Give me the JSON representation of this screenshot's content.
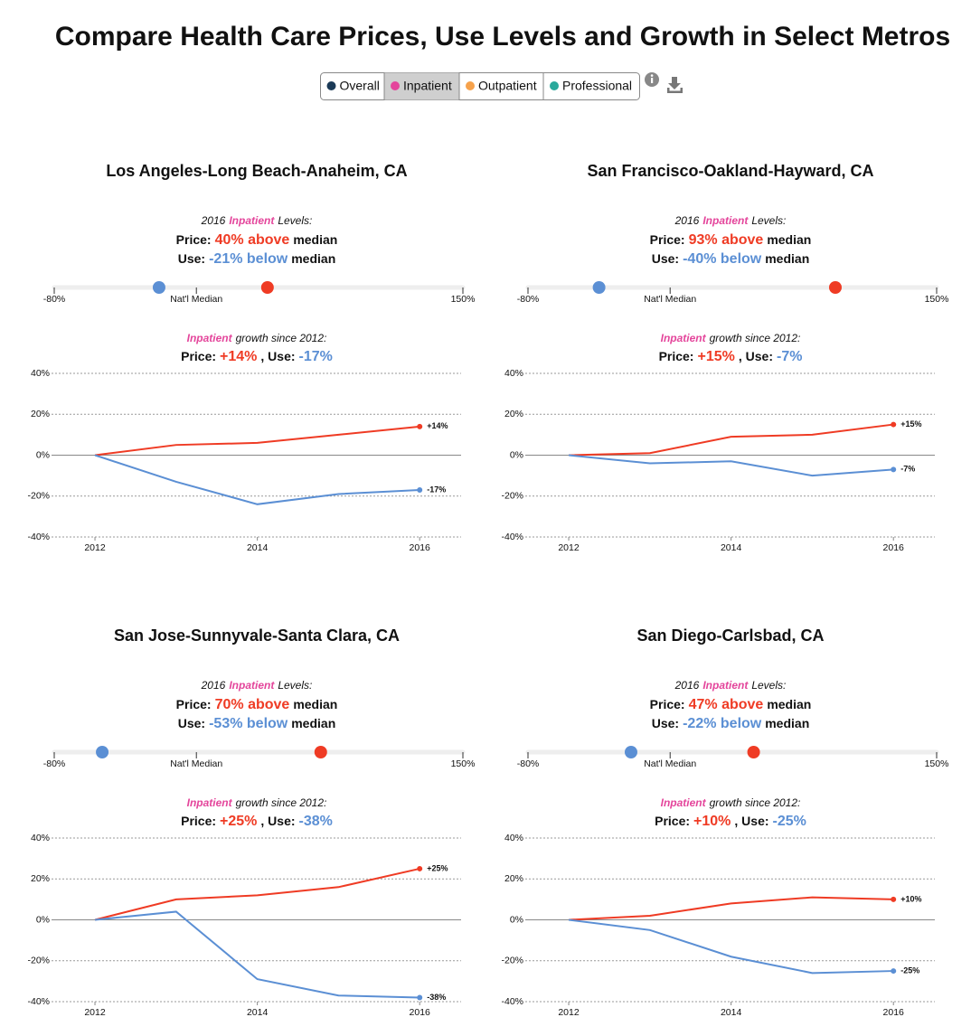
{
  "title": "Compare Health Care Prices, Use Levels and Growth in Select Metros",
  "tabs": [
    {
      "label": "Overall",
      "color": "#1b3a57"
    },
    {
      "label": "Inpatient",
      "color": "#e4459b"
    },
    {
      "label": "Outpatient",
      "color": "#f6a24c"
    },
    {
      "label": "Professional",
      "color": "#2aa99b"
    }
  ],
  "active_tab": 1,
  "chart_data": [
    {
      "type": "line",
      "title": "Los Angeles-Long Beach-Anaheim, CA",
      "levels": {
        "year": "2016",
        "category": "Inpatient",
        "caption": "Levels:",
        "price_label": "Price:",
        "price_value": 40,
        "price_text": "40% above",
        "use_label": "Use:",
        "use_value": -21,
        "use_text": "-21% below",
        "suffix": "median",
        "range": [
          -80,
          150
        ],
        "ticks": [
          {
            "value": -80,
            "label": "-80%"
          },
          {
            "value": 0,
            "label": "Nat'l Median"
          },
          {
            "value": 150,
            "label": "150%"
          }
        ]
      },
      "growth": {
        "category": "Inpatient",
        "caption": "growth since 2012:",
        "price_label": "Price:",
        "separator": ", Use:"
      },
      "x": [
        2012,
        2013,
        2014,
        2015,
        2016
      ],
      "xlim": [
        2011.22,
        2016.51
      ],
      "xticks": [
        2012,
        2014,
        2016
      ],
      "ylim": [
        -40,
        40
      ],
      "yticks": [
        {
          "value": -40,
          "label": "-40%"
        },
        {
          "value": -20,
          "label": "-20%"
        },
        {
          "value": 0,
          "label": "0%"
        },
        {
          "value": 20,
          "label": "20%"
        },
        {
          "value": 40,
          "label": "40%"
        }
      ],
      "series": [
        {
          "color": "#ef3b24",
          "values": [
            0,
            5,
            6,
            10,
            14
          ],
          "value_labels": [
            null,
            null,
            null,
            null,
            "+14%"
          ]
        },
        {
          "color": "#5b8fd4",
          "values": [
            0,
            -13,
            -24,
            -19,
            -17
          ],
          "value_labels": [
            null,
            null,
            null,
            null,
            "-17%"
          ]
        }
      ]
    },
    {
      "type": "line",
      "title": "San Francisco-Oakland-Hayward, CA",
      "levels": {
        "year": "2016",
        "category": "Inpatient",
        "caption": "Levels:",
        "price_label": "Price:",
        "price_value": 93,
        "price_text": "93% above",
        "use_label": "Use:",
        "use_value": -40,
        "use_text": "-40% below",
        "suffix": "median",
        "range": [
          -80,
          150
        ],
        "ticks": [
          {
            "value": -80,
            "label": "-80%"
          },
          {
            "value": 0,
            "label": "Nat'l Median"
          },
          {
            "value": 150,
            "label": "150%"
          }
        ]
      },
      "growth": {
        "category": "Inpatient",
        "caption": "growth since 2012:",
        "price_label": "Price:",
        "separator": ", Use:"
      },
      "x": [
        2012,
        2013,
        2014,
        2015,
        2016
      ],
      "xlim": [
        2011.22,
        2016.51
      ],
      "xticks": [
        2012,
        2014,
        2016
      ],
      "ylim": [
        -40,
        40
      ],
      "yticks": [
        {
          "value": -40,
          "label": "-40%"
        },
        {
          "value": -20,
          "label": "-20%"
        },
        {
          "value": 0,
          "label": "0%"
        },
        {
          "value": 20,
          "label": "20%"
        },
        {
          "value": 40,
          "label": "40%"
        }
      ],
      "series": [
        {
          "color": "#ef3b24",
          "values": [
            0,
            1,
            9,
            10,
            15
          ],
          "value_labels": [
            null,
            null,
            null,
            null,
            "+15%"
          ]
        },
        {
          "color": "#5b8fd4",
          "values": [
            0,
            -4,
            -3,
            -10,
            -7
          ],
          "value_labels": [
            null,
            null,
            null,
            null,
            "-7%"
          ]
        }
      ]
    },
    {
      "type": "line",
      "title": "San Jose-Sunnyvale-Santa Clara, CA",
      "levels": {
        "year": "2016",
        "category": "Inpatient",
        "caption": "Levels:",
        "price_label": "Price:",
        "price_value": 70,
        "price_text": "70% above",
        "use_label": "Use:",
        "use_value": -53,
        "use_text": "-53% below",
        "suffix": "median",
        "range": [
          -80,
          150
        ],
        "ticks": [
          {
            "value": -80,
            "label": "-80%"
          },
          {
            "value": 0,
            "label": "Nat'l Median"
          },
          {
            "value": 150,
            "label": "150%"
          }
        ]
      },
      "growth": {
        "category": "Inpatient",
        "caption": "growth since 2012:",
        "price_label": "Price:",
        "separator": ", Use:"
      },
      "x": [
        2012,
        2013,
        2014,
        2015,
        2016
      ],
      "xlim": [
        2011.22,
        2016.51
      ],
      "xticks": [
        2012,
        2014,
        2016
      ],
      "ylim": [
        -40,
        40
      ],
      "yticks": [
        {
          "value": -40,
          "label": "-40%"
        },
        {
          "value": -20,
          "label": "-20%"
        },
        {
          "value": 0,
          "label": "0%"
        },
        {
          "value": 20,
          "label": "20%"
        },
        {
          "value": 40,
          "label": "40%"
        }
      ],
      "series": [
        {
          "color": "#ef3b24",
          "values": [
            0,
            10,
            12,
            16,
            25
          ],
          "value_labels": [
            null,
            null,
            null,
            null,
            "+25%"
          ]
        },
        {
          "color": "#5b8fd4",
          "values": [
            0,
            4,
            -29,
            -37,
            -38
          ],
          "value_labels": [
            null,
            null,
            null,
            null,
            "-38%"
          ]
        }
      ]
    },
    {
      "type": "line",
      "title": "San Diego-Carlsbad, CA",
      "levels": {
        "year": "2016",
        "category": "Inpatient",
        "caption": "Levels:",
        "price_label": "Price:",
        "price_value": 47,
        "price_text": "47% above",
        "use_label": "Use:",
        "use_value": -22,
        "use_text": "-22% below",
        "suffix": "median",
        "range": [
          -80,
          150
        ],
        "ticks": [
          {
            "value": -80,
            "label": "-80%"
          },
          {
            "value": 0,
            "label": "Nat'l Median"
          },
          {
            "value": 150,
            "label": "150%"
          }
        ]
      },
      "growth": {
        "category": "Inpatient",
        "caption": "growth since 2012:",
        "price_label": "Price:",
        "separator": ", Use:"
      },
      "x": [
        2012,
        2013,
        2014,
        2015,
        2016
      ],
      "xlim": [
        2011.22,
        2016.51
      ],
      "xticks": [
        2012,
        2014,
        2016
      ],
      "ylim": [
        -40,
        40
      ],
      "yticks": [
        {
          "value": -40,
          "label": "-40%"
        },
        {
          "value": -20,
          "label": "-20%"
        },
        {
          "value": 0,
          "label": "0%"
        },
        {
          "value": 20,
          "label": "20%"
        },
        {
          "value": 40,
          "label": "40%"
        }
      ],
      "series": [
        {
          "color": "#ef3b24",
          "values": [
            0,
            2,
            8,
            11,
            10
          ],
          "value_labels": [
            null,
            null,
            null,
            null,
            "+10%"
          ]
        },
        {
          "color": "#5b8fd4",
          "values": [
            0,
            -5,
            -18,
            -26,
            -25
          ],
          "value_labels": [
            null,
            null,
            null,
            null,
            "-25%"
          ]
        }
      ]
    }
  ]
}
